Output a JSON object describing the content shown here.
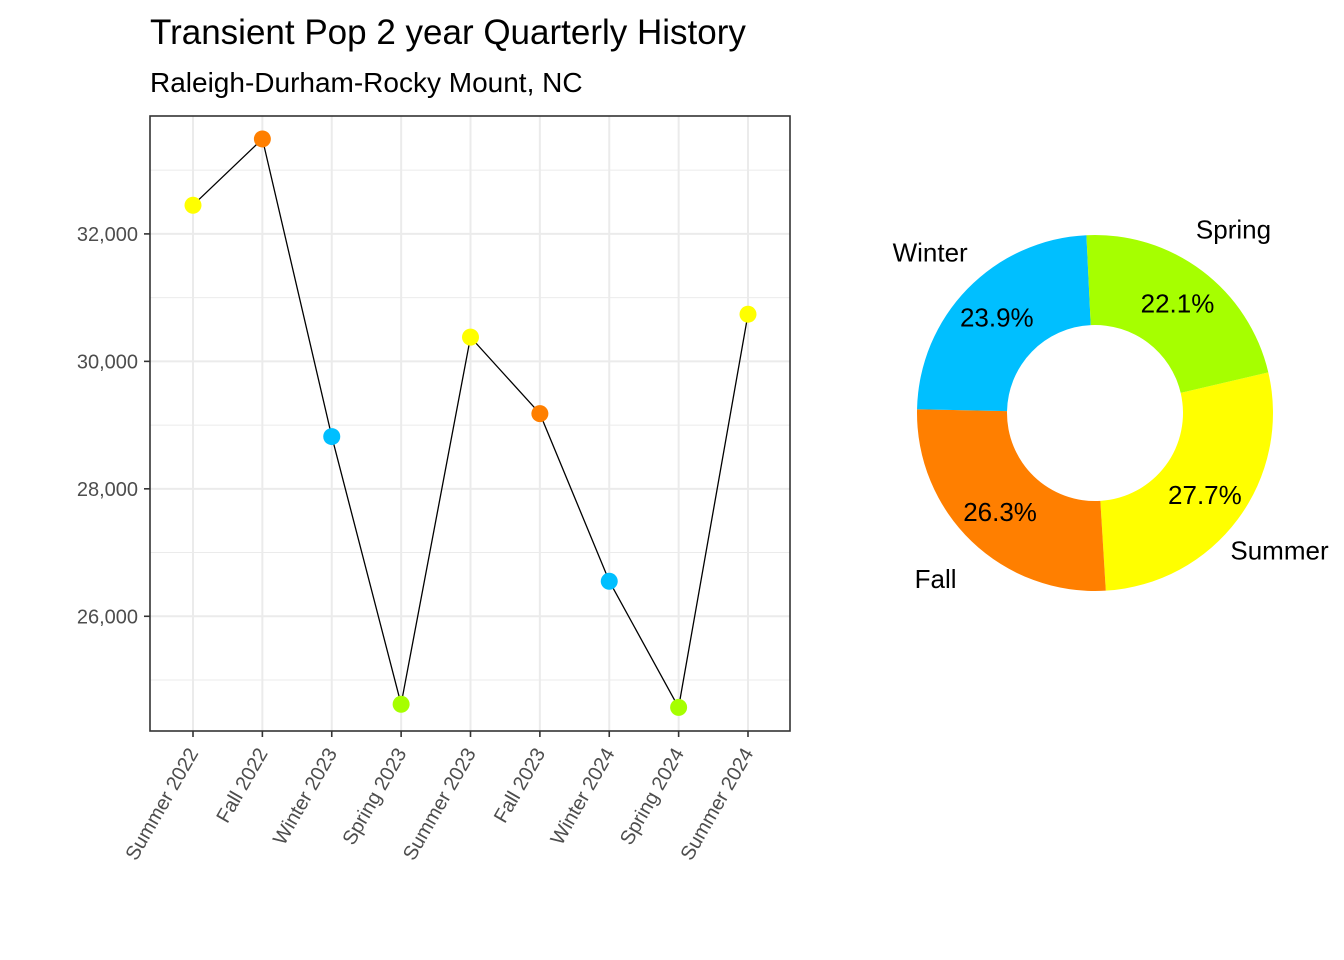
{
  "title": "Transient Pop 2 year Quarterly History",
  "subtitle": "Raleigh-Durham-Rocky Mount, NC",
  "colors": {
    "Summer": "#FFFF00",
    "Fall": "#FF7F00",
    "Winter": "#00BFFF",
    "Spring": "#A6FF00",
    "line": "#000000",
    "grid": "#EBEBEB",
    "panel_border": "#333333"
  },
  "chart_data": [
    {
      "type": "line",
      "categories": [
        "Summer 2022",
        "Fall 2022",
        "Winter 2023",
        "Spring 2023",
        "Summer 2023",
        "Fall 2023",
        "Winter 2024",
        "Spring 2024",
        "Summer 2024"
      ],
      "seasons": [
        "Summer",
        "Fall",
        "Winter",
        "Spring",
        "Summer",
        "Fall",
        "Winter",
        "Spring",
        "Summer"
      ],
      "values": [
        32450,
        33490,
        28820,
        24620,
        30380,
        29180,
        26550,
        24570,
        30740
      ],
      "ylim": [
        24200,
        33850
      ],
      "yticks": [
        26000,
        28000,
        30000,
        32000
      ],
      "ytick_labels": [
        "26,000",
        "28,000",
        "30,000",
        "32,000"
      ],
      "xlabel": "",
      "ylabel": "",
      "grid": true,
      "legend": "none"
    },
    {
      "type": "pie",
      "donut": true,
      "slices": [
        {
          "label": "Summer",
          "value": 27.7,
          "pct_label": "27.7%"
        },
        {
          "label": "Fall",
          "value": 26.3,
          "pct_label": "26.3%"
        },
        {
          "label": "Winter",
          "value": 23.9,
          "pct_label": "23.9%"
        },
        {
          "label": "Spring",
          "value": 22.1,
          "pct_label": "22.1%"
        }
      ]
    }
  ]
}
